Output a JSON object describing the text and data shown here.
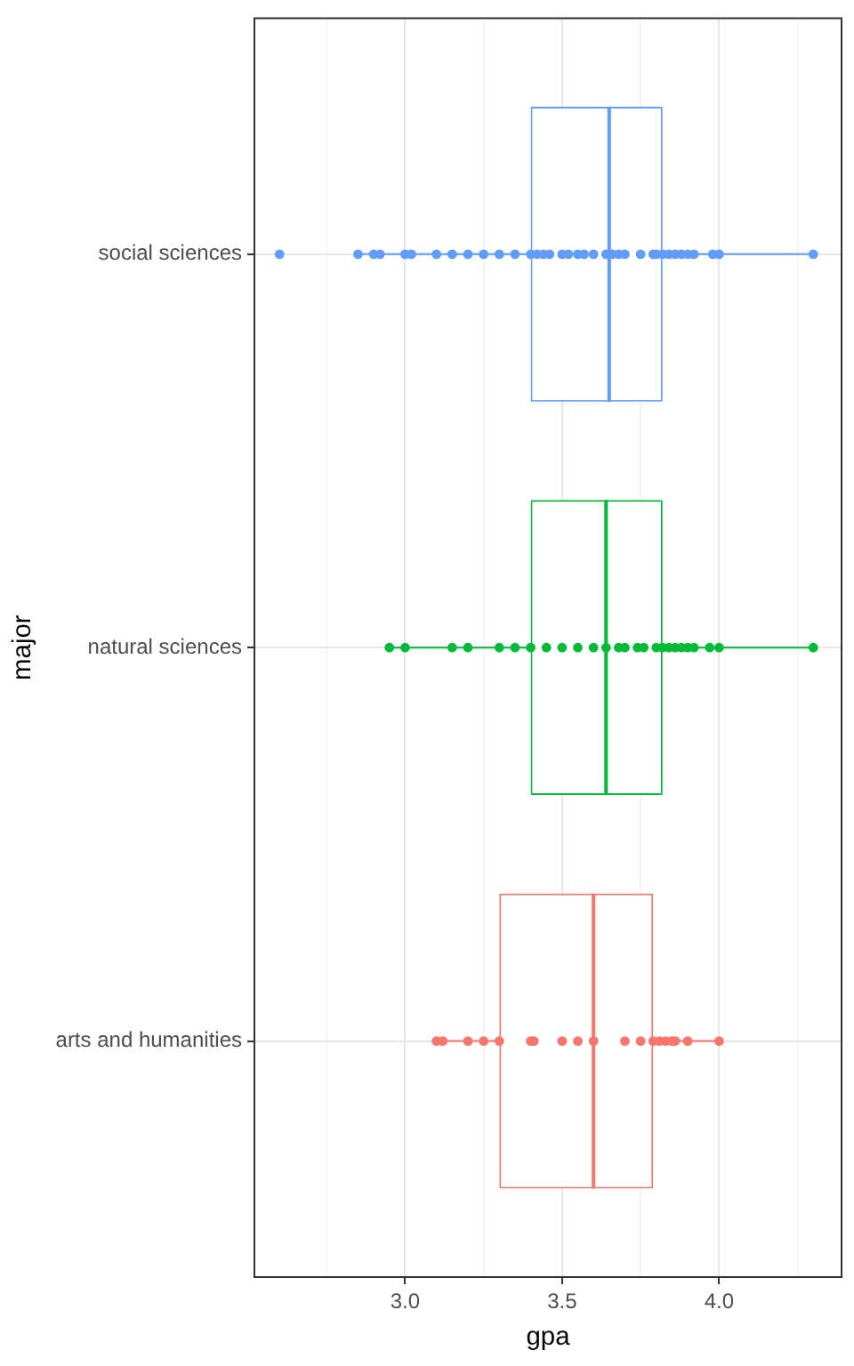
{
  "chart_data": {
    "type": "box",
    "orientation": "horizontal",
    "xlabel": "gpa",
    "ylabel": "major",
    "categories": [
      "social sciences",
      "natural sciences",
      "arts and humanities"
    ],
    "xlim": [
      2.52,
      4.39
    ],
    "xticks": [
      {
        "value": 2.75,
        "label": null
      },
      {
        "value": 3,
        "label": "3.0"
      },
      {
        "value": 3.25,
        "label": null
      },
      3.5,
      {
        "value": 3.75,
        "label": null
      },
      {
        "value": 4,
        "label": "4.0"
      },
      {
        "value": 4.25,
        "label": null
      }
    ],
    "grid": true,
    "marker": "circle",
    "series": [
      {
        "type": "box",
        "colors": [
          "#619cff",
          "#00ba38",
          "#f8766d"
        ],
        "boxes": [
          {
            "low": 2.85,
            "q1": 3.4,
            "median": 3.65,
            "q3": 3.82,
            "high": 4.3
          },
          {
            "low": 2.95,
            "q1": 3.4,
            "median": 3.64,
            "q3": 3.82,
            "high": 4.3
          },
          {
            "low": 3.1,
            "q1": 3.3,
            "median": 3.6,
            "q3": 3.79,
            "high": 4.0
          }
        ]
      },
      {
        "type": "scatter",
        "color": "#619cff",
        "x": [
          "social sciences",
          "social sciences",
          "social sciences",
          "social sciences",
          "social sciences",
          "social sciences",
          "social sciences",
          "social sciences",
          "social sciences",
          "social sciences",
          "social sciences",
          "social sciences",
          "social sciences",
          "social sciences",
          "social sciences",
          "social sciences",
          "social sciences",
          "social sciences",
          "social sciences",
          "social sciences",
          "social sciences",
          "social sciences",
          "social sciences",
          "social sciences",
          "social sciences",
          "social sciences",
          "social sciences",
          "social sciences",
          "social sciences",
          "social sciences",
          "social sciences",
          "social sciences",
          "social sciences",
          "social sciences",
          "social sciences",
          "social sciences",
          "social sciences"
        ],
        "values": [
          2.6,
          2.85,
          2.9,
          2.92,
          3.0,
          3.02,
          3.1,
          3.15,
          3.2,
          3.25,
          3.3,
          3.35,
          3.4,
          3.42,
          3.44,
          3.46,
          3.5,
          3.52,
          3.55,
          3.57,
          3.6,
          3.64,
          3.66,
          3.68,
          3.7,
          3.75,
          3.79,
          3.8,
          3.82,
          3.84,
          3.86,
          3.88,
          3.9,
          3.92,
          3.98,
          4.0,
          4.3
        ]
      },
      {
        "type": "scatter",
        "color": "#00ba38",
        "x": [
          "natural sciences",
          "natural sciences",
          "natural sciences",
          "natural sciences",
          "natural sciences",
          "natural sciences",
          "natural sciences",
          "natural sciences",
          "natural sciences",
          "natural sciences",
          "natural sciences",
          "natural sciences",
          "natural sciences",
          "natural sciences",
          "natural sciences",
          "natural sciences",
          "natural sciences",
          "natural sciences",
          "natural sciences",
          "natural sciences",
          "natural sciences",
          "natural sciences",
          "natural sciences",
          "natural sciences",
          "natural sciences",
          "natural sciences"
        ],
        "values": [
          2.95,
          3.0,
          3.15,
          3.2,
          3.3,
          3.35,
          3.4,
          3.45,
          3.5,
          3.55,
          3.6,
          3.64,
          3.68,
          3.7,
          3.74,
          3.76,
          3.8,
          3.82,
          3.84,
          3.86,
          3.88,
          3.9,
          3.92,
          3.97,
          4.0,
          4.3
        ]
      },
      {
        "type": "scatter",
        "color": "#f8766d",
        "x": [
          "arts and humanities",
          "arts and humanities",
          "arts and humanities",
          "arts and humanities",
          "arts and humanities",
          "arts and humanities",
          "arts and humanities",
          "arts and humanities",
          "arts and humanities",
          "arts and humanities",
          "arts and humanities",
          "arts and humanities",
          "arts and humanities",
          "arts and humanities",
          "arts and humanities",
          "arts and humanities",
          "arts and humanities",
          "arts and humanities",
          "arts and humanities"
        ],
        "values": [
          3.1,
          3.12,
          3.2,
          3.25,
          3.3,
          3.4,
          3.41,
          3.5,
          3.55,
          3.6,
          3.7,
          3.75,
          3.79,
          3.81,
          3.83,
          3.85,
          3.86,
          3.9,
          4.0
        ]
      }
    ]
  }
}
